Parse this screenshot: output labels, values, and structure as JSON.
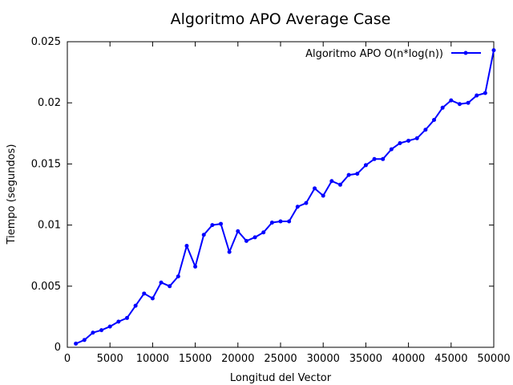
{
  "chart_data": {
    "type": "line",
    "title": "Algoritmo APO Average Case",
    "xlabel": "Longitud del Vector",
    "ylabel": "Tiempo (segundos)",
    "xlim": [
      0,
      50000
    ],
    "ylim": [
      0,
      0.025
    ],
    "xticks": [
      0,
      5000,
      10000,
      15000,
      20000,
      25000,
      30000,
      35000,
      40000,
      45000,
      50000
    ],
    "xtick_labels": [
      "0",
      "5000",
      "10000",
      "15000",
      "20000",
      "25000",
      "30000",
      "35000",
      "40000",
      "45000",
      "50000"
    ],
    "yticks": [
      0,
      0.005,
      0.01,
      0.015,
      0.02,
      0.025
    ],
    "ytick_labels": [
      "0",
      "0.005",
      "0.01",
      "0.015",
      "0.02",
      "0.025"
    ],
    "grid": false,
    "legend_position": "top-right",
    "series": [
      {
        "name": "Algoritmo APO O(n*log(n))",
        "color": "#0000ff",
        "marker": "dot",
        "x": [
          1000,
          2000,
          3000,
          4000,
          5000,
          6000,
          7000,
          8000,
          9000,
          10000,
          11000,
          12000,
          13000,
          14000,
          15000,
          16000,
          17000,
          18000,
          19000,
          20000,
          21000,
          22000,
          23000,
          24000,
          25000,
          26000,
          27000,
          28000,
          29000,
          30000,
          31000,
          32000,
          33000,
          34000,
          35000,
          36000,
          37000,
          38000,
          39000,
          40000,
          41000,
          42000,
          43000,
          44000,
          45000,
          46000,
          47000,
          48000,
          49000,
          50000
        ],
        "y": [
          0.0003,
          0.0006,
          0.0012,
          0.0014,
          0.0017,
          0.0021,
          0.0024,
          0.0034,
          0.0044,
          0.004,
          0.0053,
          0.005,
          0.0058,
          0.0083,
          0.0066,
          0.0092,
          0.01,
          0.0101,
          0.0078,
          0.0095,
          0.0087,
          0.009,
          0.0094,
          0.0102,
          0.0103,
          0.0103,
          0.0115,
          0.0118,
          0.013,
          0.0124,
          0.0136,
          0.0133,
          0.0141,
          0.0142,
          0.0149,
          0.0154,
          0.0154,
          0.0162,
          0.0167,
          0.0169,
          0.0171,
          0.0178,
          0.0186,
          0.0196,
          0.0202,
          0.0199,
          0.02,
          0.0206,
          0.0208,
          0.0243
        ]
      }
    ]
  }
}
